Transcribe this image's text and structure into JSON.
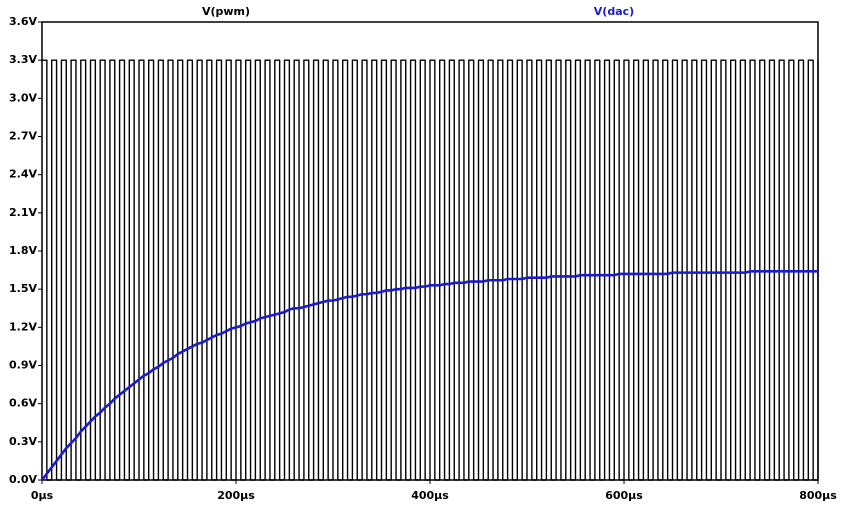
{
  "chart_data": {
    "type": "line",
    "x": [
      0,
      5,
      10,
      15,
      20,
      25,
      30,
      35,
      40,
      45,
      50,
      55,
      60,
      65,
      70,
      75,
      80,
      85,
      90,
      95,
      100,
      105,
      110,
      115,
      120,
      125,
      130,
      135,
      140,
      145,
      150,
      155,
      160,
      165,
      170,
      175,
      180,
      185,
      190,
      195,
      200,
      205,
      210,
      215,
      220,
      225,
      230,
      235,
      240,
      245,
      250,
      255,
      260,
      265,
      270,
      275,
      280,
      285,
      290,
      295,
      300,
      305,
      310,
      315,
      320,
      325,
      330,
      335,
      340,
      345,
      350,
      355,
      360,
      365,
      370,
      375,
      380,
      385,
      390,
      395,
      400,
      405,
      410,
      415,
      420,
      425,
      430,
      435,
      440,
      445,
      450,
      455,
      460,
      465,
      470,
      475,
      480,
      485,
      490,
      495,
      500,
      505,
      510,
      515,
      520,
      525,
      530,
      535,
      540,
      545,
      550,
      555,
      560,
      565,
      570,
      575,
      580,
      585,
      590,
      595,
      600,
      605,
      610,
      615,
      620,
      625,
      630,
      635,
      640,
      645,
      650,
      655,
      660,
      665,
      670,
      675,
      680,
      685,
      690,
      695,
      700,
      705,
      710,
      715,
      720,
      725,
      730,
      735,
      740,
      745,
      750,
      755,
      760,
      765,
      770,
      775,
      780,
      785,
      790,
      795,
      800
    ],
    "series": [
      {
        "name": "V(pwm)",
        "color": "#000000",
        "step": "post",
        "values": [
          3.3,
          0,
          3.3,
          0,
          3.3,
          0,
          3.3,
          0,
          3.3,
          0,
          3.3,
          0,
          3.3,
          0,
          3.3,
          0,
          3.3,
          0,
          3.3,
          0,
          3.3,
          0,
          3.3,
          0,
          3.3,
          0,
          3.3,
          0,
          3.3,
          0,
          3.3,
          0,
          3.3,
          0,
          3.3,
          0,
          3.3,
          0,
          3.3,
          0,
          3.3,
          0,
          3.3,
          0,
          3.3,
          0,
          3.3,
          0,
          3.3,
          0,
          3.3,
          0,
          3.3,
          0,
          3.3,
          0,
          3.3,
          0,
          3.3,
          0,
          3.3,
          0,
          3.3,
          0,
          3.3,
          0,
          3.3,
          0,
          3.3,
          0,
          3.3,
          0,
          3.3,
          0,
          3.3,
          0,
          3.3,
          0,
          3.3,
          0,
          3.3,
          0,
          3.3,
          0,
          3.3,
          0,
          3.3,
          0,
          3.3,
          0,
          3.3,
          0,
          3.3,
          0,
          3.3,
          0,
          3.3,
          0,
          3.3,
          0,
          3.3,
          0,
          3.3,
          0,
          3.3,
          0,
          3.3,
          0,
          3.3,
          0,
          3.3,
          0,
          3.3,
          0,
          3.3,
          0,
          3.3,
          0,
          3.3,
          0,
          3.3,
          0,
          3.3,
          0,
          3.3,
          0,
          3.3,
          0,
          3.3,
          0,
          3.3,
          0,
          3.3,
          0,
          3.3,
          0,
          3.3,
          0,
          3.3,
          0,
          3.3,
          0,
          3.3,
          0,
          3.3,
          0,
          3.3,
          0,
          3.3,
          0,
          3.3,
          0,
          3.3,
          0,
          3.3,
          0,
          3.3,
          0,
          3.3,
          0,
          3.3
        ]
      },
      {
        "name": "V(dac)",
        "color": "#1a1ad0",
        "values": [
          0.0,
          0.05,
          0.1,
          0.15,
          0.2,
          0.25,
          0.29,
          0.33,
          0.38,
          0.42,
          0.46,
          0.5,
          0.53,
          0.57,
          0.6,
          0.64,
          0.67,
          0.7,
          0.73,
          0.76,
          0.79,
          0.82,
          0.84,
          0.87,
          0.89,
          0.92,
          0.94,
          0.96,
          0.99,
          1.01,
          1.03,
          1.05,
          1.07,
          1.08,
          1.1,
          1.12,
          1.14,
          1.15,
          1.17,
          1.19,
          1.2,
          1.21,
          1.23,
          1.24,
          1.25,
          1.27,
          1.28,
          1.29,
          1.3,
          1.31,
          1.32,
          1.34,
          1.35,
          1.35,
          1.36,
          1.37,
          1.38,
          1.39,
          1.4,
          1.41,
          1.41,
          1.42,
          1.43,
          1.44,
          1.44,
          1.45,
          1.46,
          1.46,
          1.47,
          1.47,
          1.48,
          1.49,
          1.49,
          1.5,
          1.5,
          1.51,
          1.51,
          1.51,
          1.52,
          1.52,
          1.53,
          1.53,
          1.53,
          1.54,
          1.54,
          1.55,
          1.55,
          1.55,
          1.56,
          1.56,
          1.56,
          1.56,
          1.57,
          1.57,
          1.57,
          1.57,
          1.58,
          1.58,
          1.58,
          1.58,
          1.59,
          1.59,
          1.59,
          1.59,
          1.59,
          1.6,
          1.6,
          1.6,
          1.6,
          1.6,
          1.6,
          1.61,
          1.61,
          1.61,
          1.61,
          1.61,
          1.61,
          1.61,
          1.61,
          1.62,
          1.62,
          1.62,
          1.62,
          1.62,
          1.62,
          1.62,
          1.62,
          1.62,
          1.62,
          1.62,
          1.63,
          1.63,
          1.63,
          1.63,
          1.63,
          1.63,
          1.63,
          1.63,
          1.63,
          1.63,
          1.63,
          1.63,
          1.63,
          1.63,
          1.63,
          1.63,
          1.64,
          1.64,
          1.64,
          1.64,
          1.64,
          1.64,
          1.64,
          1.64,
          1.64,
          1.64,
          1.64,
          1.64,
          1.64,
          1.64,
          1.64
        ]
      }
    ],
    "xlim": [
      0,
      800
    ],
    "xticks": [
      {
        "value": 0,
        "label": "0µs"
      },
      {
        "value": 200,
        "label": "200µs"
      },
      {
        "value": 400,
        "label": "400µs"
      },
      {
        "value": 600,
        "label": "600µs"
      },
      {
        "value": 800,
        "label": "800µs"
      }
    ],
    "ylim": [
      0,
      3.6
    ],
    "yticks": [
      {
        "value": 0,
        "label": "0.0V"
      },
      {
        "value": 0.3,
        "label": "0.3V"
      },
      {
        "value": 0.6,
        "label": "0.6V"
      },
      {
        "value": 0.9,
        "label": "0.9V"
      },
      {
        "value": 1.2,
        "label": "1.2V"
      },
      {
        "value": 1.5,
        "label": "1.5V"
      },
      {
        "value": 1.8,
        "label": "1.8V"
      },
      {
        "value": 2.1,
        "label": "2.1V"
      },
      {
        "value": 2.4,
        "label": "2.4V"
      },
      {
        "value": 2.7,
        "label": "2.7V"
      },
      {
        "value": 3.0,
        "label": "3.0V"
      },
      {
        "value": 3.3,
        "label": "3.3V"
      },
      {
        "value": 3.6,
        "label": "3.6V"
      }
    ],
    "grid": false
  }
}
